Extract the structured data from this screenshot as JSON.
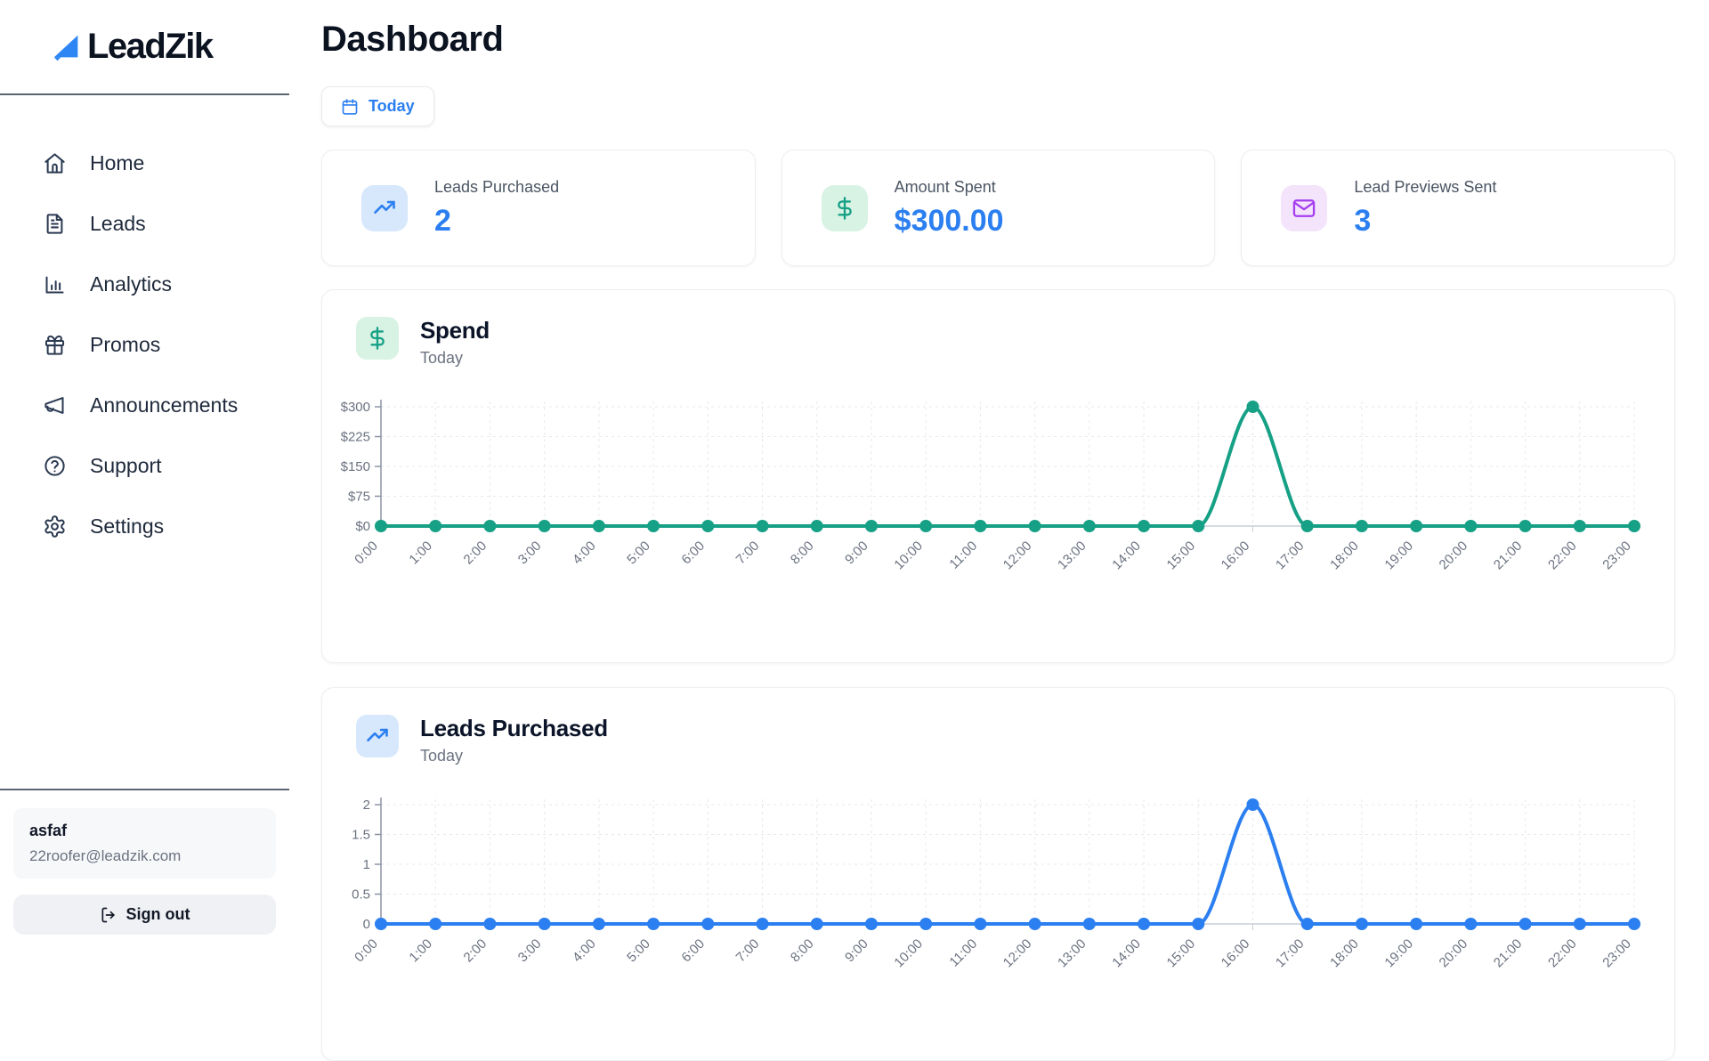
{
  "brand": {
    "name": "LeadZik",
    "logo_icon": "arrow-up-right-triangle-icon",
    "logo_color": "#2e86f5"
  },
  "sidebar": {
    "items": [
      {
        "label": "Home",
        "icon": "home-icon"
      },
      {
        "label": "Leads",
        "icon": "document-icon"
      },
      {
        "label": "Analytics",
        "icon": "bar-chart-icon"
      },
      {
        "label": "Promos",
        "icon": "gift-icon"
      },
      {
        "label": "Announcements",
        "icon": "megaphone-icon"
      },
      {
        "label": "Support",
        "icon": "help-circle-icon"
      },
      {
        "label": "Settings",
        "icon": "gear-icon"
      }
    ],
    "user": {
      "name": "asfaf",
      "email": "22roofer@leadzik.com"
    },
    "signout_label": "Sign out",
    "signout_icon": "logout-icon"
  },
  "header": {
    "title": "Dashboard",
    "date_filter": {
      "label": "Today",
      "icon": "calendar-icon",
      "color": "#2b7ff0"
    }
  },
  "stats": [
    {
      "label": "Leads Purchased",
      "value": "2",
      "icon": "trending-up-icon",
      "icon_color": "#2b7ff0",
      "icon_bg": "#d7e7fc",
      "value_color": "#2b7ff0"
    },
    {
      "label": "Amount Spent",
      "value": "$300.00",
      "icon": "dollar-icon",
      "icon_color": "#16a085",
      "icon_bg": "#d8f3e4",
      "value_color": "#2b7ff0"
    },
    {
      "label": "Lead Previews Sent",
      "value": "3",
      "icon": "mail-icon",
      "icon_color": "#a53df0",
      "icon_bg": "#f3e4fb",
      "value_color": "#2b7ff0"
    }
  ],
  "colors": {
    "accent_blue": "#2b7ff0",
    "chart_green": "#16a085",
    "purple": "#a53df0",
    "tick_text": "#6b7280",
    "grid": "#e7e8ee",
    "y_axis": "#8b93a3",
    "x_axis": "#c9ced6"
  },
  "chart_data": [
    {
      "type": "line",
      "title": "Spend",
      "subtitle": "Today",
      "icon": "dollar-icon",
      "icon_color": "#16a085",
      "icon_bg": "#d8f3e4",
      "color": "#16a085",
      "categories": [
        "0:00",
        "1:00",
        "2:00",
        "3:00",
        "4:00",
        "5:00",
        "6:00",
        "7:00",
        "8:00",
        "9:00",
        "10:00",
        "11:00",
        "12:00",
        "13:00",
        "14:00",
        "15:00",
        "16:00",
        "17:00",
        "18:00",
        "19:00",
        "20:00",
        "21:00",
        "22:00",
        "23:00"
      ],
      "values": [
        0,
        0,
        0,
        0,
        0,
        0,
        0,
        0,
        0,
        0,
        0,
        0,
        0,
        0,
        0,
        0,
        300,
        0,
        0,
        0,
        0,
        0,
        0,
        0
      ],
      "ylim": [
        0,
        300
      ],
      "yticks": [
        0,
        75,
        150,
        225,
        300
      ],
      "ytick_labels": [
        "$0",
        "$75",
        "$150",
        "$225",
        "$300"
      ],
      "grid": true,
      "legend": "none"
    },
    {
      "type": "line",
      "title": "Leads Purchased",
      "subtitle": "Today",
      "icon": "trending-up-icon",
      "icon_color": "#2b7ff0",
      "icon_bg": "#d7e7fc",
      "color": "#2b7ff0",
      "categories": [
        "0:00",
        "1:00",
        "2:00",
        "3:00",
        "4:00",
        "5:00",
        "6:00",
        "7:00",
        "8:00",
        "9:00",
        "10:00",
        "11:00",
        "12:00",
        "13:00",
        "14:00",
        "15:00",
        "16:00",
        "17:00",
        "18:00",
        "19:00",
        "20:00",
        "21:00",
        "22:00",
        "23:00"
      ],
      "values": [
        0,
        0,
        0,
        0,
        0,
        0,
        0,
        0,
        0,
        0,
        0,
        0,
        0,
        0,
        0,
        0,
        2,
        0,
        0,
        0,
        0,
        0,
        0,
        0
      ],
      "ylim": [
        0,
        2
      ],
      "yticks": [
        0,
        0.5,
        1,
        1.5,
        2
      ],
      "ytick_labels": [
        "0",
        "0.5",
        "1",
        "1.5",
        "2"
      ],
      "grid": true,
      "legend": "none"
    }
  ]
}
